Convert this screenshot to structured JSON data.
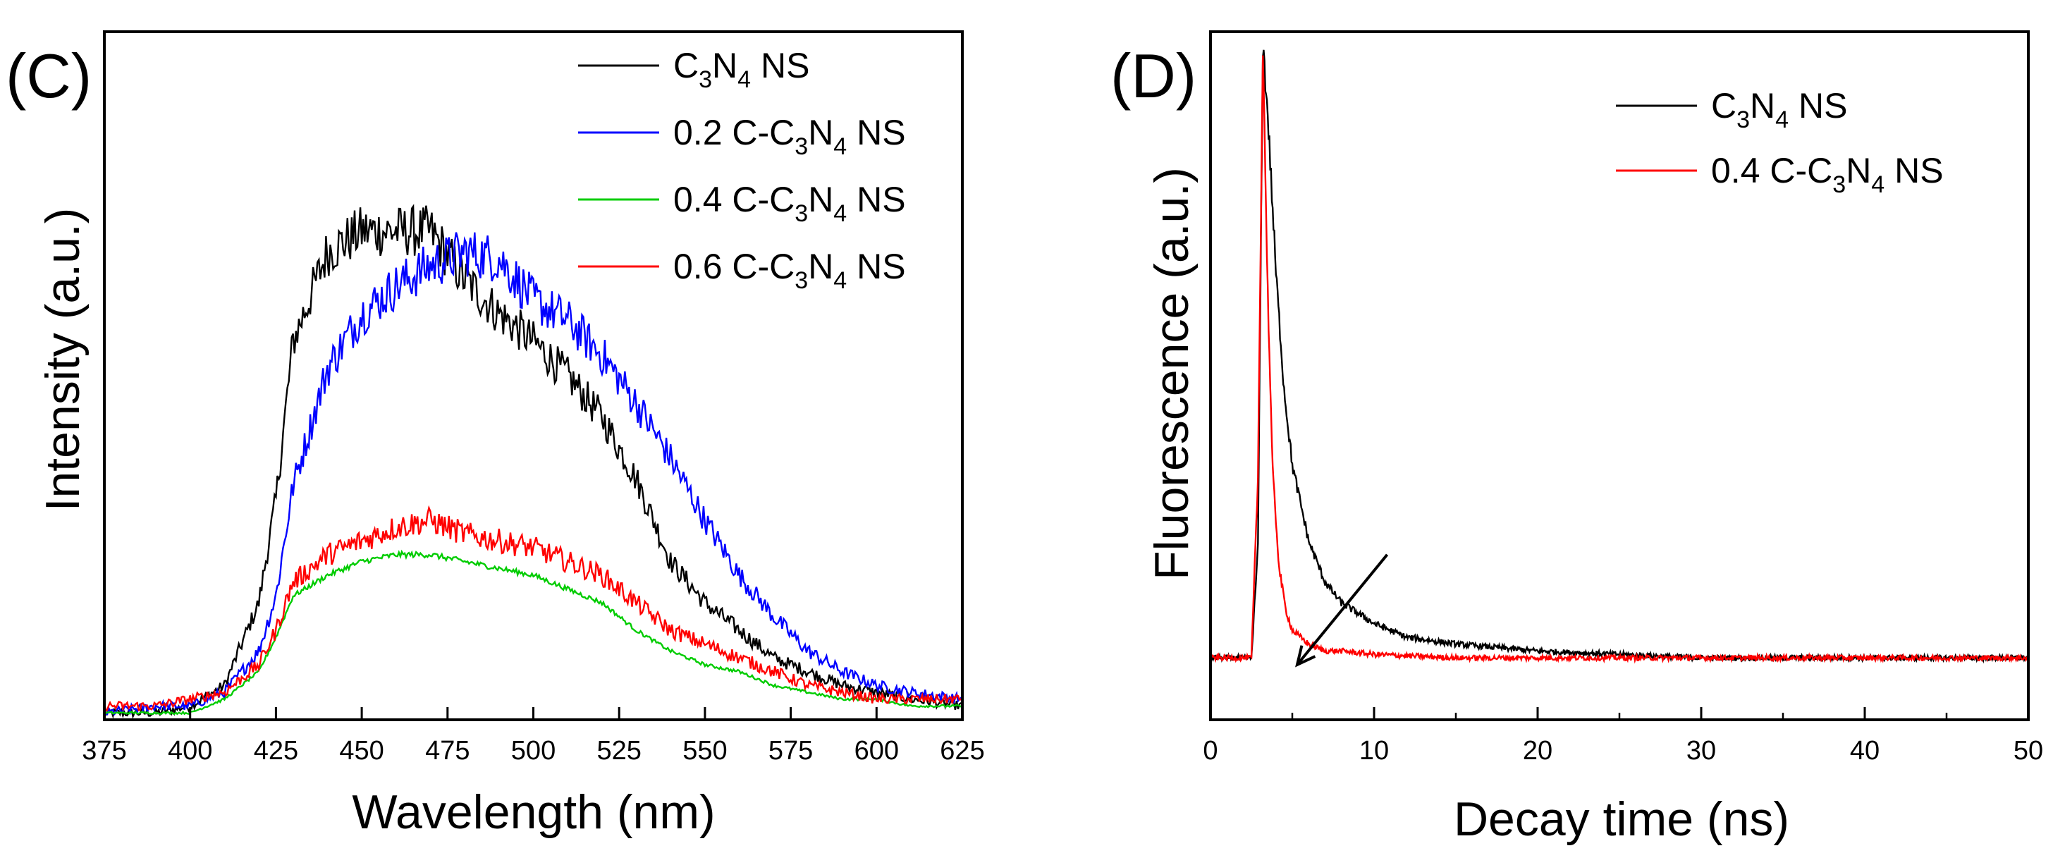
{
  "chart_data": [
    {
      "panel": "(C)",
      "type": "line",
      "xlabel": "Wavelength (nm)",
      "ylabel": "Intensity (a.u.)",
      "xlim": [
        375,
        625
      ],
      "ylim": [
        0,
        1.0
      ],
      "xticks": [
        375,
        400,
        425,
        450,
        475,
        500,
        525,
        550,
        575,
        600,
        625
      ],
      "y_tick_labels": false,
      "legend_position": "top-right",
      "x": [
        375,
        390,
        400,
        410,
        420,
        425,
        430,
        440,
        450,
        460,
        470,
        480,
        490,
        500,
        510,
        520,
        530,
        540,
        550,
        560,
        570,
        580,
        590,
        600,
        610,
        625
      ],
      "series": [
        {
          "name": "C3N4 NS",
          "label_parts": [
            [
              "C",
              ""
            ],
            [
              "3",
              "sub"
            ],
            [
              "N",
              ""
            ],
            [
              "4",
              "sub"
            ],
            [
              " NS",
              ""
            ]
          ],
          "color": "#000000",
          "values": [
            0.01,
            0.01,
            0.02,
            0.05,
            0.17,
            0.32,
            0.55,
            0.68,
            0.71,
            0.71,
            0.71,
            0.64,
            0.59,
            0.55,
            0.5,
            0.44,
            0.35,
            0.23,
            0.17,
            0.13,
            0.09,
            0.07,
            0.05,
            0.04,
            0.03,
            0.02
          ]
        },
        {
          "name": "0.2 C-C3N4 NS",
          "label_parts": [
            [
              "0.2 C-C",
              ""
            ],
            [
              "3",
              "sub"
            ],
            [
              "N",
              ""
            ],
            [
              "4",
              "sub"
            ],
            [
              " NS",
              ""
            ]
          ],
          "color": "#0000ff",
          "values": [
            0.01,
            0.02,
            0.02,
            0.04,
            0.1,
            0.18,
            0.34,
            0.51,
            0.59,
            0.63,
            0.66,
            0.68,
            0.67,
            0.61,
            0.58,
            0.53,
            0.46,
            0.38,
            0.29,
            0.21,
            0.15,
            0.1,
            0.07,
            0.05,
            0.04,
            0.03
          ]
        },
        {
          "name": "0.4 C-C3N4 NS",
          "label_parts": [
            [
              "0.4 C-C",
              ""
            ],
            [
              "3",
              "sub"
            ],
            [
              "N",
              ""
            ],
            [
              "4",
              "sub"
            ],
            [
              " NS",
              ""
            ]
          ],
          "color": "#00cc00",
          "values": [
            0.01,
            0.01,
            0.01,
            0.03,
            0.07,
            0.12,
            0.18,
            0.21,
            0.23,
            0.24,
            0.24,
            0.23,
            0.22,
            0.21,
            0.19,
            0.17,
            0.13,
            0.1,
            0.08,
            0.07,
            0.05,
            0.04,
            0.03,
            0.03,
            0.02,
            0.02
          ]
        },
        {
          "name": "0.6 C-C3N4 NS",
          "label_parts": [
            [
              "0.6 C-C",
              ""
            ],
            [
              "3",
              "sub"
            ],
            [
              "N",
              ""
            ],
            [
              "4",
              "sub"
            ],
            [
              " NS",
              ""
            ]
          ],
          "color": "#ff0000",
          "values": [
            0.02,
            0.02,
            0.03,
            0.04,
            0.08,
            0.13,
            0.2,
            0.24,
            0.26,
            0.28,
            0.29,
            0.27,
            0.26,
            0.25,
            0.23,
            0.21,
            0.17,
            0.13,
            0.11,
            0.09,
            0.07,
            0.05,
            0.04,
            0.03,
            0.03,
            0.03
          ]
        }
      ]
    },
    {
      "panel": "(D)",
      "type": "line",
      "xlabel": "Decay time (ns)",
      "ylabel": "Fluorescence (a.u.)",
      "xlim": [
        0,
        50
      ],
      "ylim": [
        0,
        1.0
      ],
      "xticks": [
        0,
        10,
        20,
        30,
        40,
        50
      ],
      "y_tick_labels": false,
      "legend_position": "top-right",
      "annotation": "arrow from (10.8 ns, 0.24) to (5.3 ns, 0.08)",
      "arrow": {
        "from": [
          10.8,
          0.24
        ],
        "to": [
          5.3,
          0.08
        ]
      },
      "series": [
        {
          "name": "C3N4 NS",
          "label_parts": [
            [
              "C",
              ""
            ],
            [
              "3",
              "sub"
            ],
            [
              "N",
              ""
            ],
            [
              "4",
              "sub"
            ],
            [
              " NS",
              ""
            ]
          ],
          "color": "#000000",
          "x": [
            0,
            2.5,
            2.9,
            3.2,
            3.5,
            4.0,
            4.5,
            5.0,
            6.0,
            7.0,
            8.0,
            10.0,
            12.0,
            15.0,
            20.0,
            25.0,
            30.0,
            40.0,
            50.0
          ],
          "values": [
            0.09,
            0.09,
            0.25,
            0.98,
            0.88,
            0.65,
            0.48,
            0.37,
            0.26,
            0.2,
            0.17,
            0.14,
            0.12,
            0.11,
            0.1,
            0.095,
            0.09,
            0.09,
            0.09
          ]
        },
        {
          "name": "0.4 C-C3N4 NS",
          "label_parts": [
            [
              "0.4 C-C",
              ""
            ],
            [
              "3",
              "sub"
            ],
            [
              "N",
              ""
            ],
            [
              "4",
              "sub"
            ],
            [
              " NS",
              ""
            ]
          ],
          "color": "#ff0000",
          "x": [
            0,
            2.5,
            2.9,
            3.2,
            3.5,
            3.8,
            4.2,
            4.6,
            5.0,
            6.0,
            7.0,
            8.0,
            10.0,
            15.0,
            20.0,
            30.0,
            40.0,
            50.0
          ],
          "values": [
            0.09,
            0.09,
            0.35,
            0.98,
            0.62,
            0.36,
            0.22,
            0.16,
            0.13,
            0.11,
            0.1,
            0.1,
            0.095,
            0.09,
            0.09,
            0.09,
            0.09,
            0.09
          ]
        }
      ]
    }
  ]
}
